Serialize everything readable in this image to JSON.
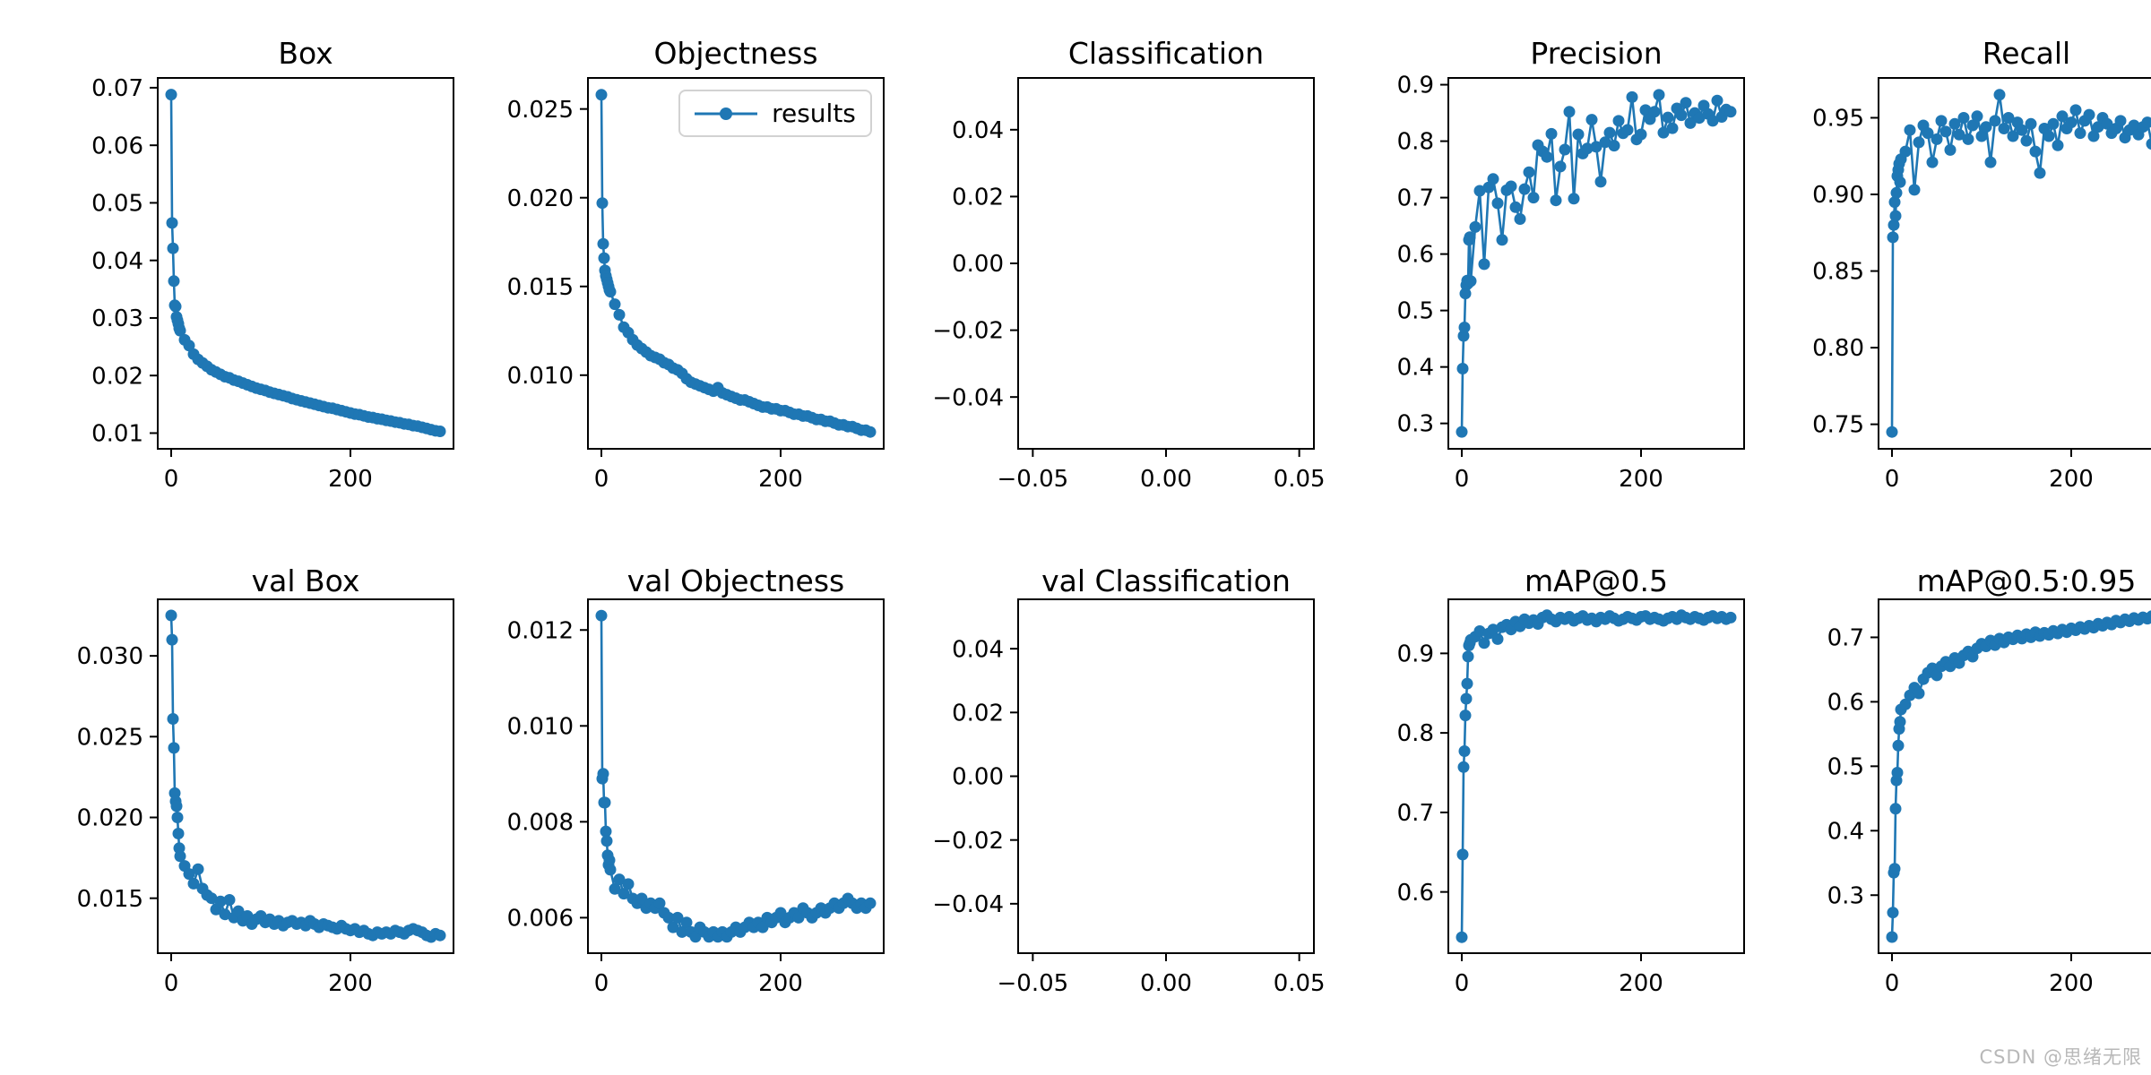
{
  "watermark": {
    "text": "CSDN @思绪无限"
  },
  "legend": {
    "label": "results"
  },
  "colors": {
    "series": "#1f77b4",
    "axis": "#000000",
    "legend_border": "#d2d2d2",
    "watermark": "#b8b8b8"
  },
  "chart_data": {
    "type": "line",
    "layout": {
      "rows": 2,
      "cols": 5,
      "grid": false,
      "marker": "point",
      "legend_position": "upper right of Objectness subplot"
    },
    "epochs": [
      0,
      1,
      2,
      3,
      4,
      5,
      6,
      7,
      8,
      9,
      10,
      15,
      20,
      25,
      30,
      35,
      40,
      45,
      50,
      55,
      60,
      65,
      70,
      75,
      80,
      85,
      90,
      95,
      100,
      105,
      110,
      115,
      120,
      125,
      130,
      135,
      140,
      145,
      150,
      155,
      160,
      165,
      170,
      175,
      180,
      185,
      190,
      195,
      200,
      205,
      210,
      215,
      220,
      225,
      230,
      235,
      240,
      245,
      250,
      255,
      260,
      265,
      270,
      275,
      280,
      285,
      290,
      295,
      300
    ],
    "plots": [
      {
        "title": "Box",
        "xlim": [
          -15,
          315
        ],
        "ylim": [
          0.00727,
          0.0717
        ],
        "xticks": [
          0,
          200
        ],
        "xtick_labels": [
          "0",
          "200"
        ],
        "yticks": [
          0.01,
          0.02,
          0.03,
          0.04,
          0.05,
          0.06,
          0.07
        ],
        "ytick_labels": [
          "0.01",
          "0.02",
          "0.03",
          "0.04",
          "0.05",
          "0.06",
          "0.07"
        ],
        "y": [
          0.0688,
          0.0465,
          0.0421,
          0.0364,
          0.0322,
          0.032,
          0.0302,
          0.0296,
          0.029,
          0.0282,
          0.0278,
          0.0262,
          0.0252,
          0.0237,
          0.0228,
          0.0222,
          0.0216,
          0.021,
          0.0206,
          0.0202,
          0.0198,
          0.0196,
          0.0192,
          0.019,
          0.0187,
          0.0184,
          0.0181,
          0.0178,
          0.0176,
          0.0174,
          0.0171,
          0.0169,
          0.0167,
          0.0165,
          0.0163,
          0.016,
          0.0158,
          0.0156,
          0.0154,
          0.0152,
          0.015,
          0.0148,
          0.0146,
          0.0144,
          0.0143,
          0.0141,
          0.0139,
          0.0137,
          0.0135,
          0.0133,
          0.0132,
          0.013,
          0.0128,
          0.0127,
          0.0125,
          0.0124,
          0.0122,
          0.0121,
          0.0119,
          0.0118,
          0.0116,
          0.0115,
          0.0113,
          0.0112,
          0.011,
          0.0108,
          0.0106,
          0.0104,
          0.0103
        ]
      },
      {
        "title": "Objectness",
        "legend": true,
        "xlim": [
          -15,
          315
        ],
        "ylim": [
          0.00585,
          0.02675
        ],
        "xticks": [
          0,
          200
        ],
        "xtick_labels": [
          "0",
          "200"
        ],
        "yticks": [
          0.01,
          0.015,
          0.02,
          0.025
        ],
        "ytick_labels": [
          "0.010",
          "0.015",
          "0.020",
          "0.025"
        ],
        "y": [
          0.0258,
          0.0197,
          0.0174,
          0.0166,
          0.0159,
          0.0156,
          0.0154,
          0.0152,
          0.015,
          0.0148,
          0.0147,
          0.014,
          0.0134,
          0.0127,
          0.0124,
          0.012,
          0.0117,
          0.0115,
          0.0113,
          0.0111,
          0.011,
          0.0109,
          0.0107,
          0.0106,
          0.0104,
          0.0103,
          0.0101,
          0.0098,
          0.0096,
          0.0095,
          0.0094,
          0.0093,
          0.0092,
          0.0091,
          0.0093,
          0.009,
          0.0089,
          0.0088,
          0.0087,
          0.0086,
          0.0086,
          0.0085,
          0.0084,
          0.0083,
          0.0082,
          0.0082,
          0.0081,
          0.0081,
          0.008,
          0.008,
          0.0079,
          0.0078,
          0.0078,
          0.0077,
          0.0077,
          0.0076,
          0.0075,
          0.0075,
          0.0074,
          0.0074,
          0.0073,
          0.0072,
          0.0072,
          0.0071,
          0.0071,
          0.007,
          0.0069,
          0.0069,
          0.0068
        ]
      },
      {
        "title": "Classification",
        "empty": true,
        "xlim": [
          -0.0555,
          0.0555
        ],
        "ylim": [
          -0.0555,
          0.0555
        ],
        "xticks": [
          -0.05,
          0,
          0.05
        ],
        "xtick_labels": [
          "−0.05",
          "0.00",
          "0.05"
        ],
        "yticks": [
          -0.04,
          -0.02,
          0,
          0.02,
          0.04
        ],
        "ytick_labels": [
          "−0.04",
          "−0.02",
          "0.00",
          "0.02",
          "0.04"
        ]
      },
      {
        "title": "Precision",
        "xlim": [
          -15,
          315
        ],
        "ylim": [
          0.255,
          0.912
        ],
        "xticks": [
          0,
          200
        ],
        "xtick_labels": [
          "0",
          "200"
        ],
        "yticks": [
          0.3,
          0.4,
          0.5,
          0.6,
          0.7,
          0.8,
          0.9
        ],
        "ytick_labels": [
          "0.3",
          "0.4",
          "0.5",
          "0.6",
          "0.7",
          "0.8",
          "0.9"
        ],
        "y": [
          0.285,
          0.397,
          0.455,
          0.47,
          0.53,
          0.545,
          0.553,
          0.548,
          0.625,
          0.63,
          0.552,
          0.648,
          0.712,
          0.582,
          0.718,
          0.733,
          0.69,
          0.625,
          0.713,
          0.72,
          0.683,
          0.662,
          0.715,
          0.745,
          0.7,
          0.793,
          0.782,
          0.772,
          0.813,
          0.695,
          0.755,
          0.785,
          0.852,
          0.698,
          0.812,
          0.778,
          0.787,
          0.838,
          0.79,
          0.728,
          0.798,
          0.815,
          0.792,
          0.836,
          0.814,
          0.82,
          0.878,
          0.803,
          0.812,
          0.855,
          0.839,
          0.852,
          0.882,
          0.815,
          0.842,
          0.823,
          0.858,
          0.846,
          0.868,
          0.832,
          0.85,
          0.841,
          0.863,
          0.848,
          0.836,
          0.872,
          0.843,
          0.856,
          0.852
        ]
      },
      {
        "title": "Recall",
        "xlim": [
          -15,
          315
        ],
        "ylim": [
          0.734,
          0.976
        ],
        "xticks": [
          0,
          200
        ],
        "xtick_labels": [
          "0",
          "200"
        ],
        "yticks": [
          0.75,
          0.8,
          0.85,
          0.9,
          0.95
        ],
        "ytick_labels": [
          "0.75",
          "0.80",
          "0.85",
          "0.90",
          "0.95"
        ],
        "y": [
          0.745,
          0.872,
          0.88,
          0.895,
          0.886,
          0.901,
          0.912,
          0.916,
          0.92,
          0.908,
          0.923,
          0.928,
          0.942,
          0.903,
          0.934,
          0.945,
          0.94,
          0.921,
          0.936,
          0.948,
          0.941,
          0.929,
          0.946,
          0.939,
          0.95,
          0.936,
          0.945,
          0.951,
          0.938,
          0.944,
          0.921,
          0.948,
          0.965,
          0.943,
          0.95,
          0.938,
          0.947,
          0.942,
          0.935,
          0.946,
          0.928,
          0.914,
          0.943,
          0.938,
          0.946,
          0.932,
          0.951,
          0.943,
          0.947,
          0.955,
          0.94,
          0.948,
          0.952,
          0.938,
          0.944,
          0.95,
          0.946,
          0.94,
          0.943,
          0.948,
          0.937,
          0.942,
          0.945,
          0.939,
          0.944,
          0.947,
          0.933,
          0.948,
          0.945
        ]
      },
      {
        "title": "val Box",
        "xlim": [
          -15,
          315
        ],
        "ylim": [
          0.0116,
          0.0335
        ],
        "xticks": [
          0,
          200
        ],
        "xtick_labels": [
          "0",
          "200"
        ],
        "yticks": [
          0.015,
          0.02,
          0.025,
          0.03
        ],
        "ytick_labels": [
          "0.015",
          "0.020",
          "0.025",
          "0.030"
        ],
        "y": [
          0.0325,
          0.031,
          0.0261,
          0.0243,
          0.0215,
          0.021,
          0.0207,
          0.02,
          0.019,
          0.0181,
          0.0176,
          0.017,
          0.0165,
          0.0159,
          0.0168,
          0.0156,
          0.0152,
          0.015,
          0.0143,
          0.0148,
          0.014,
          0.0149,
          0.0138,
          0.0142,
          0.0136,
          0.0139,
          0.0134,
          0.0137,
          0.0139,
          0.0135,
          0.0137,
          0.0134,
          0.0136,
          0.0133,
          0.0135,
          0.0136,
          0.0134,
          0.0135,
          0.0133,
          0.0136,
          0.0134,
          0.0132,
          0.0134,
          0.0133,
          0.0132,
          0.0131,
          0.0133,
          0.0131,
          0.013,
          0.0131,
          0.0129,
          0.013,
          0.0128,
          0.0127,
          0.0129,
          0.0128,
          0.0129,
          0.0128,
          0.013,
          0.0129,
          0.0128,
          0.013,
          0.0131,
          0.013,
          0.0129,
          0.0127,
          0.0126,
          0.0128,
          0.0127
        ]
      },
      {
        "title": "val Objectness",
        "xlim": [
          -15,
          315
        ],
        "ylim": [
          0.00526,
          0.01264
        ],
        "xticks": [
          0,
          200
        ],
        "xtick_labels": [
          "0",
          "200"
        ],
        "yticks": [
          0.006,
          0.008,
          0.01,
          0.012
        ],
        "ytick_labels": [
          "0.006",
          "0.008",
          "0.010",
          "0.012"
        ],
        "y": [
          0.0123,
          0.0089,
          0.009,
          0.0084,
          0.0084,
          0.0078,
          0.0076,
          0.0073,
          0.0071,
          0.0072,
          0.007,
          0.0066,
          0.0068,
          0.0065,
          0.0067,
          0.0064,
          0.0063,
          0.0064,
          0.0062,
          0.0063,
          0.0062,
          0.0063,
          0.0061,
          0.006,
          0.0058,
          0.006,
          0.0057,
          0.0059,
          0.0057,
          0.0056,
          0.0058,
          0.0057,
          0.0056,
          0.0057,
          0.0056,
          0.0057,
          0.0056,
          0.0057,
          0.0058,
          0.0057,
          0.0058,
          0.0059,
          0.0058,
          0.0059,
          0.0058,
          0.006,
          0.0059,
          0.006,
          0.0061,
          0.0059,
          0.006,
          0.0061,
          0.006,
          0.0062,
          0.0061,
          0.006,
          0.0061,
          0.0062,
          0.0061,
          0.0062,
          0.0063,
          0.0062,
          0.0063,
          0.0064,
          0.0063,
          0.0062,
          0.0063,
          0.0062,
          0.0063
        ]
      },
      {
        "title": "val Classification",
        "empty": true,
        "xlim": [
          -0.0555,
          0.0555
        ],
        "ylim": [
          -0.0555,
          0.0555
        ],
        "xticks": [
          -0.05,
          0,
          0.05
        ],
        "xtick_labels": [
          "−0.05",
          "0.00",
          "0.05"
        ],
        "yticks": [
          -0.04,
          -0.02,
          0,
          0.02,
          0.04
        ],
        "ytick_labels": [
          "−0.04",
          "−0.02",
          "0.00",
          "0.02",
          "0.04"
        ]
      },
      {
        "title": "mAP@0.5",
        "xlim": [
          -15,
          315
        ],
        "ylim": [
          0.523,
          0.968
        ],
        "xticks": [
          0,
          200
        ],
        "xtick_labels": [
          "0",
          "200"
        ],
        "yticks": [
          0.6,
          0.7,
          0.8,
          0.9
        ],
        "ytick_labels": [
          "0.6",
          "0.7",
          "0.8",
          "0.9"
        ],
        "y": [
          0.543,
          0.647,
          0.757,
          0.777,
          0.822,
          0.843,
          0.862,
          0.896,
          0.91,
          0.913,
          0.917,
          0.921,
          0.928,
          0.913,
          0.925,
          0.93,
          0.918,
          0.933,
          0.936,
          0.93,
          0.94,
          0.934,
          0.943,
          0.938,
          0.942,
          0.937,
          0.945,
          0.948,
          0.943,
          0.94,
          0.945,
          0.943,
          0.946,
          0.941,
          0.944,
          0.947,
          0.942,
          0.944,
          0.94,
          0.945,
          0.943,
          0.947,
          0.944,
          0.941,
          0.943,
          0.946,
          0.944,
          0.942,
          0.946,
          0.947,
          0.943,
          0.945,
          0.943,
          0.941,
          0.944,
          0.946,
          0.943,
          0.948,
          0.945,
          0.943,
          0.946,
          0.944,
          0.942,
          0.945,
          0.947,
          0.944,
          0.946,
          0.943,
          0.945
        ]
      },
      {
        "title": "mAP@0.5:0.95",
        "xlim": [
          -15,
          315
        ],
        "ylim": [
          0.21,
          0.759
        ],
        "xticks": [
          0,
          200
        ],
        "xtick_labels": [
          "0",
          "200"
        ],
        "yticks": [
          0.3,
          0.4,
          0.5,
          0.6,
          0.7
        ],
        "ytick_labels": [
          "0.3",
          "0.4",
          "0.5",
          "0.6",
          "0.7"
        ],
        "y": [
          0.235,
          0.273,
          0.335,
          0.341,
          0.434,
          0.478,
          0.49,
          0.532,
          0.558,
          0.569,
          0.588,
          0.596,
          0.61,
          0.622,
          0.613,
          0.635,
          0.645,
          0.652,
          0.641,
          0.655,
          0.662,
          0.655,
          0.668,
          0.66,
          0.672,
          0.678,
          0.67,
          0.683,
          0.69,
          0.686,
          0.695,
          0.688,
          0.698,
          0.692,
          0.7,
          0.697,
          0.703,
          0.698,
          0.705,
          0.7,
          0.708,
          0.702,
          0.707,
          0.704,
          0.71,
          0.706,
          0.712,
          0.708,
          0.714,
          0.711,
          0.716,
          0.713,
          0.718,
          0.715,
          0.721,
          0.718,
          0.723,
          0.72,
          0.726,
          0.723,
          0.728,
          0.725,
          0.73,
          0.727,
          0.731,
          0.729,
          0.733,
          0.731,
          0.734
        ]
      }
    ]
  }
}
